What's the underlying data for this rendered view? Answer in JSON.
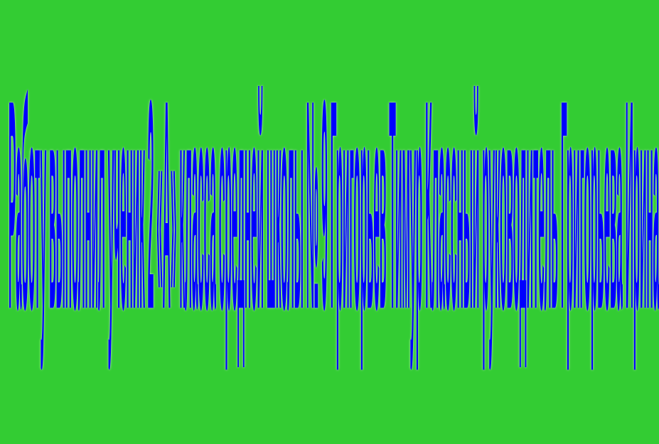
{
  "slide": {
    "background_color": "#33cc33",
    "title_text": "Работу выполнил ученик 2 «А» класса средней школы № 9 Григорьев Тимур Классный руководитель Григорьева Ирина",
    "text_color": "#0000ff"
  }
}
